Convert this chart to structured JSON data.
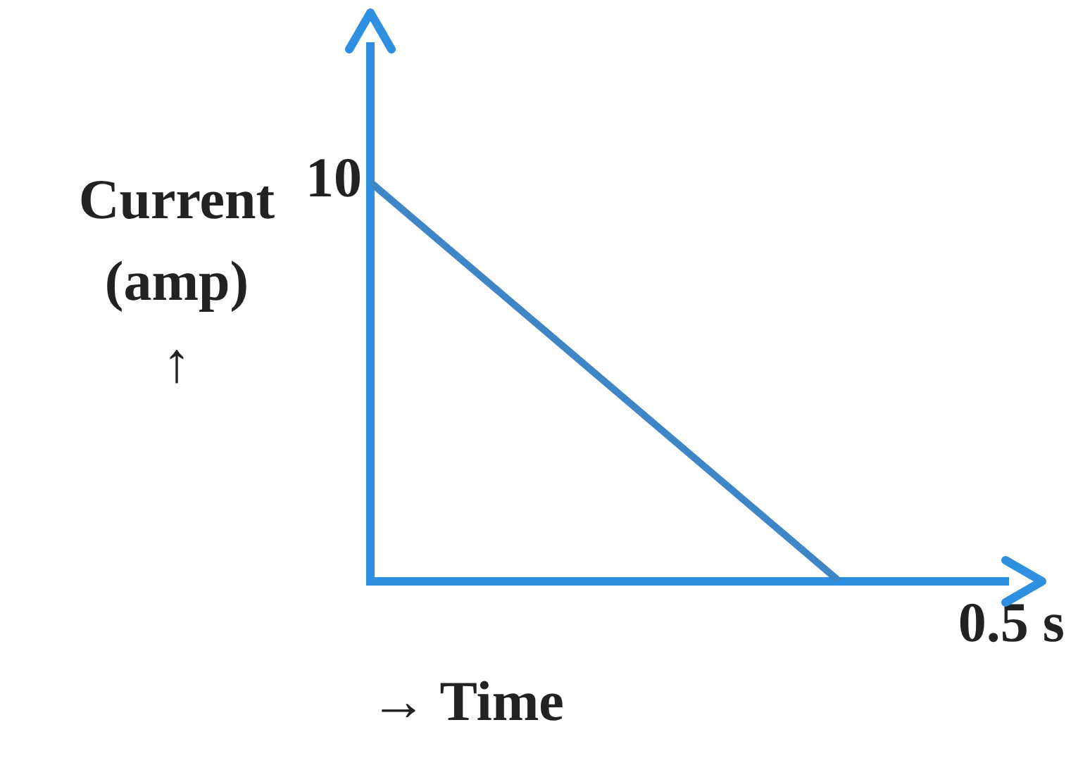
{
  "chart_data": {
    "type": "line",
    "ylabel": "Current (amp) ↑",
    "xlabel": "→ Time",
    "categories": [
      null,
      null
    ],
    "values": [
      10,
      0
    ],
    "value_labels": [
      "10",
      null
    ],
    "color": "#3f86c6",
    "ylim": [
      0,
      13.4
    ],
    "annotations": [
      "0.5 s"
    ],
    "grid": false,
    "legend": false,
    "marker": "none",
    "line_style": "solid"
  }
}
